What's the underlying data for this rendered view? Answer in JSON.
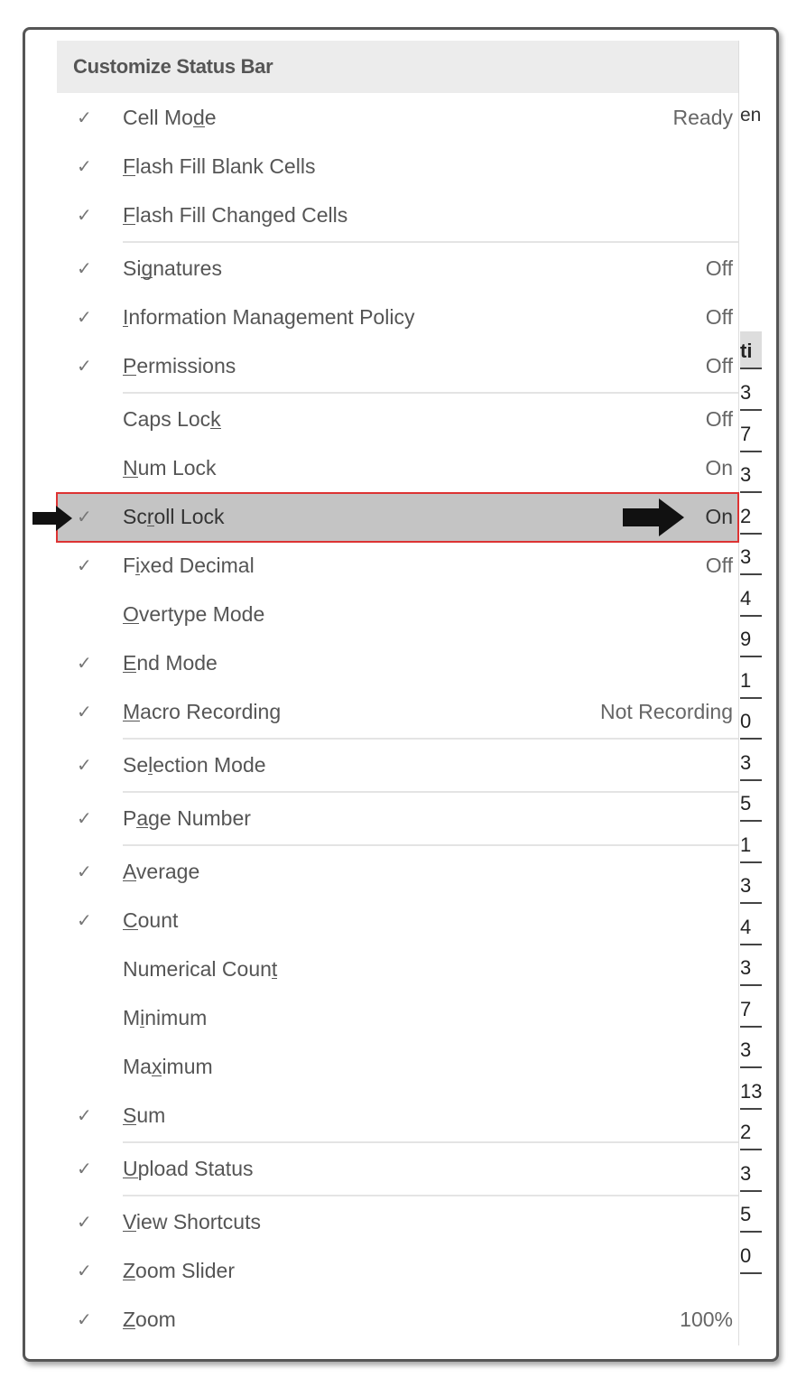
{
  "menu": {
    "title": "Customize Status Bar",
    "items": [
      {
        "label": "Cell Mode",
        "accel": 7,
        "checked": true,
        "value": "Ready"
      },
      {
        "label": "Flash Fill Blank Cells",
        "accel": 0,
        "checked": true,
        "value": ""
      },
      {
        "label": "Flash Fill Changed Cells",
        "accel": 0,
        "checked": true,
        "value": "",
        "sep_after": true
      },
      {
        "label": "Signatures",
        "accel": 2,
        "checked": true,
        "value": "Off"
      },
      {
        "label": "Information Management Policy",
        "accel": 0,
        "checked": true,
        "value": "Off"
      },
      {
        "label": "Permissions",
        "accel": 0,
        "checked": true,
        "value": "Off",
        "sep_after": true
      },
      {
        "label": "Caps Lock",
        "accel": 8,
        "checked": false,
        "value": "Off"
      },
      {
        "label": "Num Lock",
        "accel": 0,
        "checked": false,
        "value": "On"
      },
      {
        "label": "Scroll Lock",
        "accel": 2,
        "checked": true,
        "value": "On",
        "highlighted": true
      },
      {
        "label": "Fixed Decimal",
        "accel": 1,
        "checked": true,
        "value": "Off"
      },
      {
        "label": "Overtype Mode",
        "accel": 0,
        "checked": false,
        "value": ""
      },
      {
        "label": "End Mode",
        "accel": 0,
        "checked": true,
        "value": ""
      },
      {
        "label": "Macro Recording",
        "accel": 0,
        "checked": true,
        "value": "Not Recording",
        "sep_after": true
      },
      {
        "label": "Selection Mode",
        "accel": 2,
        "checked": true,
        "value": "",
        "sep_after": true
      },
      {
        "label": "Page Number",
        "accel": 1,
        "checked": true,
        "value": "",
        "sep_after": true
      },
      {
        "label": "Average",
        "accel": 0,
        "checked": true,
        "value": ""
      },
      {
        "label": "Count",
        "accel": 0,
        "checked": true,
        "value": ""
      },
      {
        "label": "Numerical Count",
        "accel": 14,
        "checked": false,
        "value": ""
      },
      {
        "label": "Minimum",
        "accel": 1,
        "checked": false,
        "value": ""
      },
      {
        "label": "Maximum",
        "accel": 2,
        "checked": false,
        "value": ""
      },
      {
        "label": "Sum",
        "accel": 0,
        "checked": true,
        "value": "",
        "sep_after": true
      },
      {
        "label": "Upload Status",
        "accel": 0,
        "checked": true,
        "value": "",
        "sep_after": true
      },
      {
        "label": "View Shortcuts",
        "accel": 0,
        "checked": true,
        "value": ""
      },
      {
        "label": "Zoom Slider",
        "accel": 0,
        "checked": true,
        "value": ""
      },
      {
        "label": "Zoom",
        "accel": 0,
        "checked": true,
        "value": "100%"
      }
    ]
  },
  "icons": {
    "check": "check-icon",
    "pointer": "arrow-right-icon"
  },
  "colors": {
    "highlight_bg": "#c4c4c4",
    "highlight_border": "#dd3333"
  },
  "background_sheet": {
    "top_fragment": "en",
    "header_fragment": "ti",
    "cells": [
      "3",
      "7",
      "3",
      "2",
      "3",
      "4",
      "9",
      "1",
      "0",
      "3",
      "5",
      "1",
      "3",
      "4",
      "3",
      "7",
      "3",
      "13",
      "2",
      "3",
      "5",
      "0"
    ]
  }
}
